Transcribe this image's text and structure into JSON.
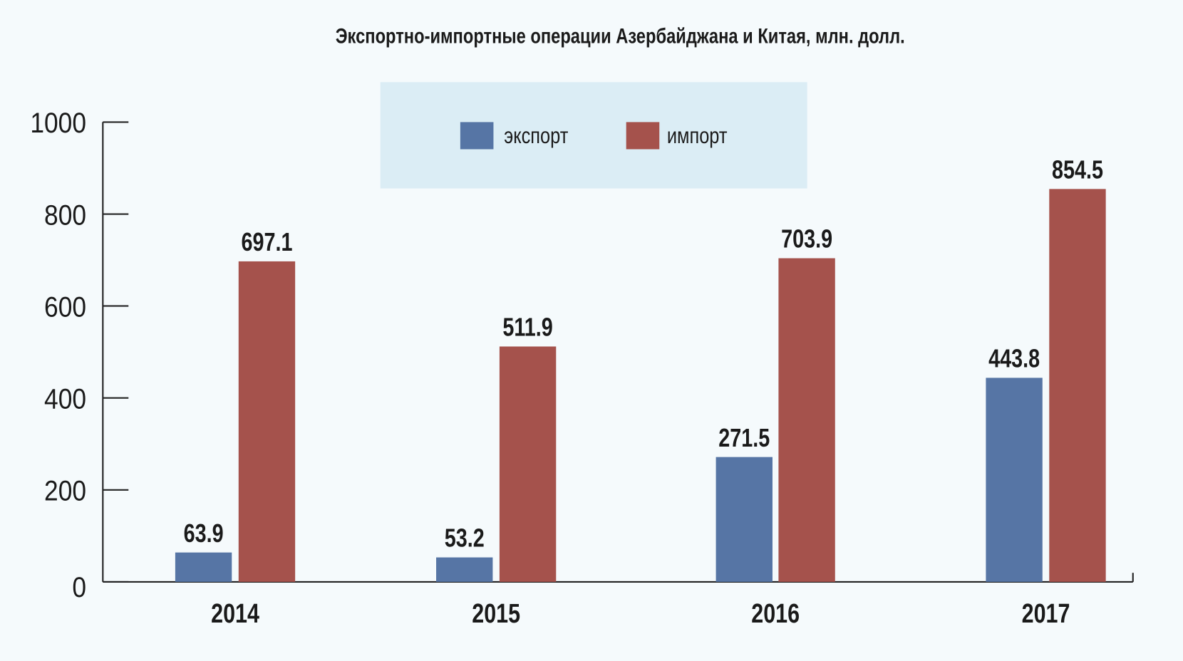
{
  "chart_data": {
    "type": "bar",
    "title": "Экспортно-импортные операции Азербайджана и Китая, млн. долл.",
    "categories": [
      "2014",
      "2015",
      "2016",
      "2017"
    ],
    "series": [
      {
        "name": "экспорт",
        "color": "#5675a5",
        "values": [
          63.9,
          53.2,
          271.5,
          443.8
        ],
        "labels": [
          "63.9",
          "53.2",
          "271.5",
          "443.8"
        ]
      },
      {
        "name": "импорт",
        "color": "#a5524c",
        "values": [
          697.1,
          511.9,
          703.9,
          854.5
        ],
        "labels": [
          "697.1",
          "511.9",
          "703.9",
          "854.5"
        ]
      }
    ],
    "ylim": [
      0,
      1000
    ],
    "yticks": [
      "0",
      "200",
      "400",
      "600",
      "800",
      "1000"
    ],
    "grid": false,
    "legend": "top-center",
    "legend_bg": "#dbedf5",
    "background": "#f5fafc"
  }
}
